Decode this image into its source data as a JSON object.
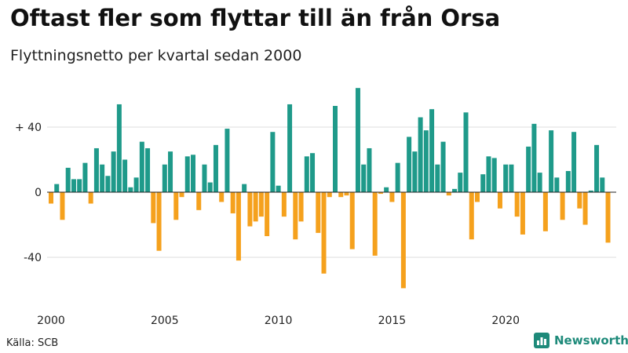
{
  "title": "Oftast fler som flyttar till än från Orsa",
  "subtitle": "Flyttningsnetto per kvartal sedan 2000",
  "source": "Källa: SCB",
  "brand": {
    "name": "Newsworthy",
    "icon": "bar-chart-logo-icon"
  },
  "colors": {
    "positive": "#1f9a8a",
    "negative": "#f5a11d",
    "grid": "#dddddd",
    "zero": "#222222"
  },
  "chart_data": {
    "type": "bar",
    "x_unit": "quarter",
    "start": "2000 Q1",
    "xticks": [
      "2000",
      "2005",
      "2010",
      "2015",
      "2020"
    ],
    "yticks": [
      "+ 40",
      "0",
      "-40"
    ],
    "ylim": [
      -62,
      66
    ],
    "grid": true,
    "values": [
      -7,
      5,
      -17,
      15,
      8,
      8,
      18,
      -7,
      27,
      17,
      10,
      25,
      54,
      20,
      3,
      9,
      31,
      27,
      -19,
      -36,
      17,
      25,
      -17,
      -3,
      22,
      23,
      -11,
      17,
      6,
      29,
      -6,
      39,
      -13,
      -42,
      5,
      -21,
      -18,
      -15,
      -27,
      37,
      4,
      -15,
      54,
      -29,
      -18,
      22,
      24,
      -25,
      -50,
      -3,
      53,
      -3,
      -2,
      -35,
      64,
      17,
      27,
      -39,
      -1,
      3,
      -6,
      18,
      -59,
      34,
      25,
      46,
      38,
      51,
      17,
      31,
      -2,
      2,
      12,
      49,
      -29,
      -6,
      11,
      22,
      21,
      -10,
      17,
      17,
      -15,
      -26,
      28,
      42,
      12,
      -24,
      38,
      9,
      -17,
      13,
      37,
      -10,
      -20,
      1,
      29,
      9,
      -31
    ]
  }
}
